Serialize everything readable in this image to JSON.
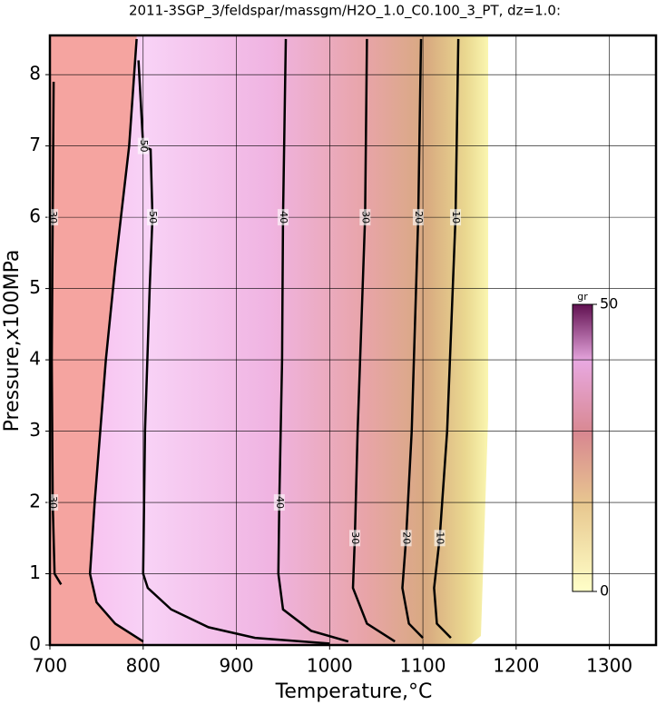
{
  "chart_data": {
    "type": "contour",
    "title": "2011-3SGP_3/feldspar/massgm/H2O_1.0_C0.100_3_PT, dz=1.0:",
    "x_label": "Temperature,°C",
    "y_label": "Pressure,x100MPa",
    "xlim": [
      700,
      1350
    ],
    "ylim": [
      0,
      8.55
    ],
    "xticks": [
      700,
      800,
      900,
      1000,
      1100,
      1200,
      1300
    ],
    "yticks": [
      0,
      1,
      2,
      3,
      4,
      5,
      6,
      7,
      8
    ],
    "grid": true,
    "contours": [
      {
        "level": 30,
        "x": [
          704,
          703,
          702,
          703,
          705,
          712
        ],
        "y": [
          7.9,
          6,
          4,
          2,
          1,
          0.85
        ]
      },
      {
        "x": [
          793,
          785,
          770,
          760,
          748,
          743,
          750,
          770,
          800
        ],
        "y": [
          8.5,
          7,
          5.3,
          4,
          2,
          1,
          0.6,
          0.3,
          0.05
        ]
      },
      {
        "level": 50,
        "x": [
          795,
          800,
          808,
          810,
          807,
          802,
          800,
          805,
          830,
          870,
          920,
          1000
        ],
        "y": [
          8.2,
          7,
          6.95,
          6,
          5,
          3,
          1,
          0.8,
          0.5,
          0.25,
          0.1,
          0.02
        ]
      },
      {
        "level": 40,
        "x": [
          953,
          950,
          949,
          946,
          945,
          950,
          980,
          1020
        ],
        "y": [
          8.5,
          6,
          4,
          2,
          1,
          0.5,
          0.2,
          0.05
        ]
      },
      {
        "level": 30,
        "x": [
          1040,
          1038,
          1030,
          1027,
          1025,
          1040,
          1070
        ],
        "y": [
          8.5,
          6,
          3,
          1.5,
          0.8,
          0.3,
          0.05
        ]
      },
      {
        "level": 20,
        "x": [
          1098,
          1095,
          1088,
          1082,
          1078,
          1085,
          1100
        ],
        "y": [
          8.5,
          6,
          3,
          1.5,
          0.8,
          0.3,
          0.1
        ]
      },
      {
        "level": 10,
        "x": [
          1138,
          1135,
          1126,
          1118,
          1112,
          1115,
          1130
        ],
        "y": [
          8.5,
          6,
          3,
          1.5,
          0.8,
          0.3,
          0.1
        ]
      }
    ],
    "colorbar": {
      "label": "gr",
      "ticks": [
        0,
        50
      ]
    }
  }
}
